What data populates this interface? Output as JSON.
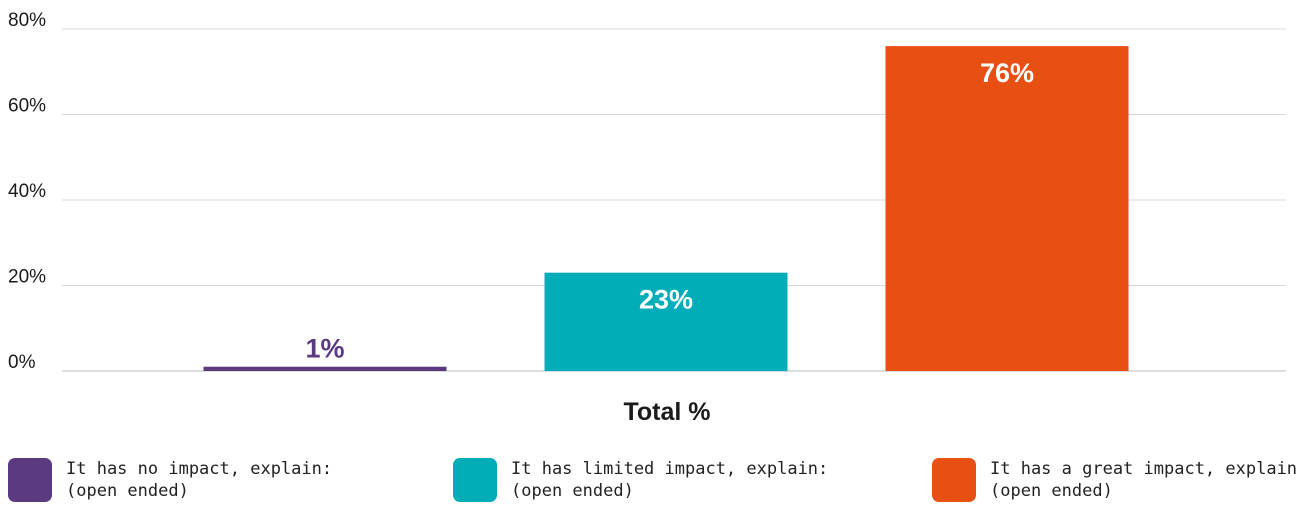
{
  "chart_data": {
    "type": "bar",
    "categories": [
      "It has no impact, explain: (open ended)",
      "It has limited impact, explain: (open ended)",
      "It has a great impact, explain: (open ended)"
    ],
    "values": [
      1,
      23,
      76
    ],
    "value_labels": [
      "1%",
      "23%",
      "76%"
    ],
    "colors": [
      "#5b3a82",
      "#00adb9",
      "#e85013"
    ],
    "label_colors": [
      "#5b3a82",
      "#ffffff",
      "#ffffff"
    ],
    "xlabel": "Total %",
    "ylabel": "",
    "ylim": [
      0,
      80
    ],
    "yticks": [
      "0%",
      "20%",
      "40%",
      "60%",
      "80%"
    ],
    "grid": true,
    "legend_position": "bottom"
  },
  "legend": [
    {
      "line1": "It has no impact, explain:",
      "line2": "(open ended)",
      "color": "#5b3a82"
    },
    {
      "line1": "It has limited impact, explain:",
      "line2": "(open ended)",
      "color": "#00adb9"
    },
    {
      "line1": "It has a great impact, explain:",
      "line2": "(open ended)",
      "color": "#e85013"
    }
  ]
}
